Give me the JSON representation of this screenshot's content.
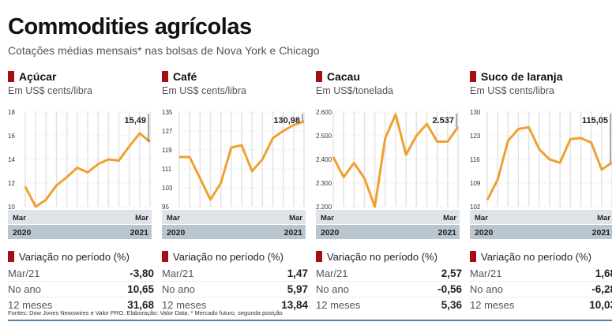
{
  "header": {
    "title": "Commodities agrícolas",
    "subtitle": "Cotações médias mensais* nas bolsas de Nova York e Chicago"
  },
  "accent_color": "#a60f12",
  "line_color": "#f0a030",
  "table_title": "Variação no período (%)",
  "chart_data": [
    {
      "type": "line",
      "title": "Açúcar",
      "ylabel": "Em US$ cents/libra",
      "yticks": [
        "10",
        "12",
        "14",
        "16",
        "18"
      ],
      "ylim": [
        10,
        18
      ],
      "x_start": {
        "month": "Mar",
        "year": "2020"
      },
      "x_end": {
        "month": "Mar",
        "year": "2021"
      },
      "values": [
        11.7,
        10.0,
        10.6,
        11.8,
        12.5,
        13.3,
        12.9,
        13.6,
        14.0,
        13.9,
        15.1,
        16.2,
        15.49
      ],
      "last_label": "15,49",
      "variation": [
        {
          "label": "Mar/21",
          "value": "-3,80"
        },
        {
          "label": "No ano",
          "value": "10,65"
        },
        {
          "label": "12 meses",
          "value": "31,68"
        }
      ]
    },
    {
      "type": "line",
      "title": "Café",
      "ylabel": "Em US$ cents/libra",
      "yticks": [
        "95",
        "103",
        "111",
        "119",
        "127",
        "135"
      ],
      "ylim": [
        95,
        135
      ],
      "x_start": {
        "month": "Mar",
        "year": "2020"
      },
      "x_end": {
        "month": "Mar",
        "year": "2021"
      },
      "values": [
        116,
        116,
        107,
        98,
        105,
        120,
        121,
        110,
        115,
        124,
        127,
        129.5,
        130.98
      ],
      "last_label": "130,98",
      "variation": [
        {
          "label": "Mar/21",
          "value": "1,47"
        },
        {
          "label": "No ano",
          "value": "5,97"
        },
        {
          "label": "12 meses",
          "value": "13,84"
        }
      ]
    },
    {
      "type": "line",
      "title": "Cacau",
      "ylabel": "Em US$/tonelada",
      "yticks": [
        "2.200",
        "2.300",
        "2.400",
        "2.500",
        "2.600"
      ],
      "ylim": [
        2200,
        2600
      ],
      "x_start": {
        "month": "Mar",
        "year": "2020"
      },
      "x_end": {
        "month": "Mar",
        "year": "2021"
      },
      "values": [
        2410,
        2325,
        2385,
        2320,
        2200,
        2490,
        2590,
        2420,
        2500,
        2550,
        2475,
        2475,
        2537
      ],
      "last_label": "2.537",
      "variation": [
        {
          "label": "Mar/21",
          "value": "2,57"
        },
        {
          "label": "No ano",
          "value": "-0,56"
        },
        {
          "label": "12 meses",
          "value": "5,36"
        }
      ]
    },
    {
      "type": "line",
      "title": "Suco de laranja",
      "ylabel": "Em US$ cents/libra",
      "yticks": [
        "102",
        "109",
        "116",
        "123",
        "130"
      ],
      "ylim": [
        102,
        130
      ],
      "x_start": {
        "month": "Mar",
        "year": "2020"
      },
      "x_end": {
        "month": "Mar",
        "year": "2021"
      },
      "values": [
        104,
        110,
        121.5,
        125,
        125.5,
        119,
        116,
        115,
        122,
        122.3,
        121,
        113,
        115.05
      ],
      "last_label": "115,05",
      "variation": [
        {
          "label": "Mar/21",
          "value": "1,68"
        },
        {
          "label": "No ano",
          "value": "-6,28"
        },
        {
          "label": "12 meses",
          "value": "10,03"
        }
      ]
    }
  ],
  "footer": "Fontes: Dow Jones Newswires e Valor PRO. Elaboração: Valor Data. * Mercado futuro, segunda posição"
}
